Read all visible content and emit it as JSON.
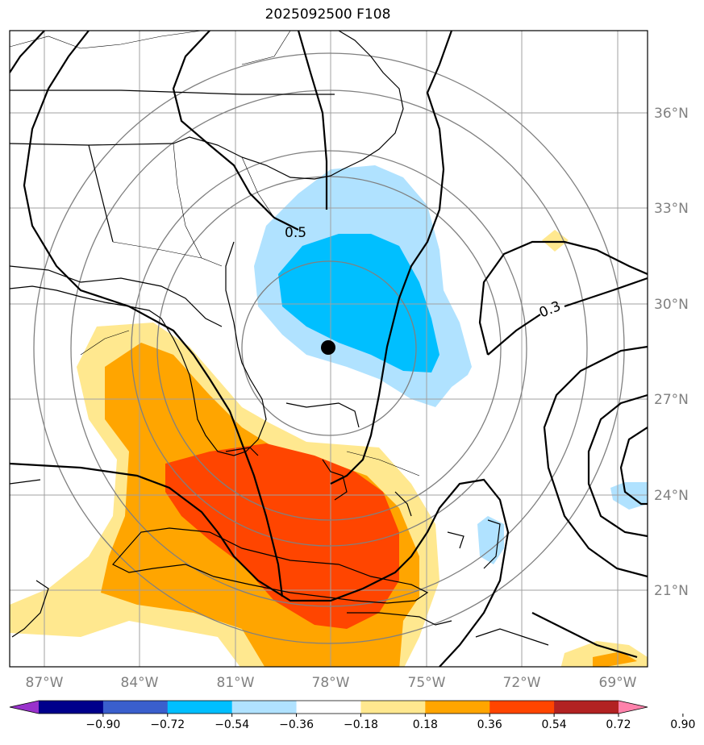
{
  "title": "2025092500 F108",
  "lon_labels": [
    "87°W",
    "84°W",
    "81°W",
    "78°W",
    "75°W",
    "72°W",
    "69°W"
  ],
  "lat_labels": [
    "36°N",
    "33°N",
    "30°N",
    "27°N",
    "24°N",
    "21°N"
  ],
  "contour_labels": [
    "0.5",
    "0.3"
  ],
  "colorbar": {
    "colors": [
      "#9932CC",
      "#00008B",
      "#3A5FCD",
      "#00BFFF",
      "#B0E2FF",
      "#FFFFFF",
      "#FFE88F",
      "#FFA500",
      "#FF4500",
      "#B22222",
      "#FF82AB"
    ],
    "ticks": [
      "−0.90",
      "−0.72",
      "−0.54",
      "−0.36",
      "−0.18",
      "0.18",
      "0.36",
      "0.54",
      "0.72",
      "0.90"
    ]
  },
  "center_marker": {
    "lon": -78.0,
    "lat": 28.6
  }
}
